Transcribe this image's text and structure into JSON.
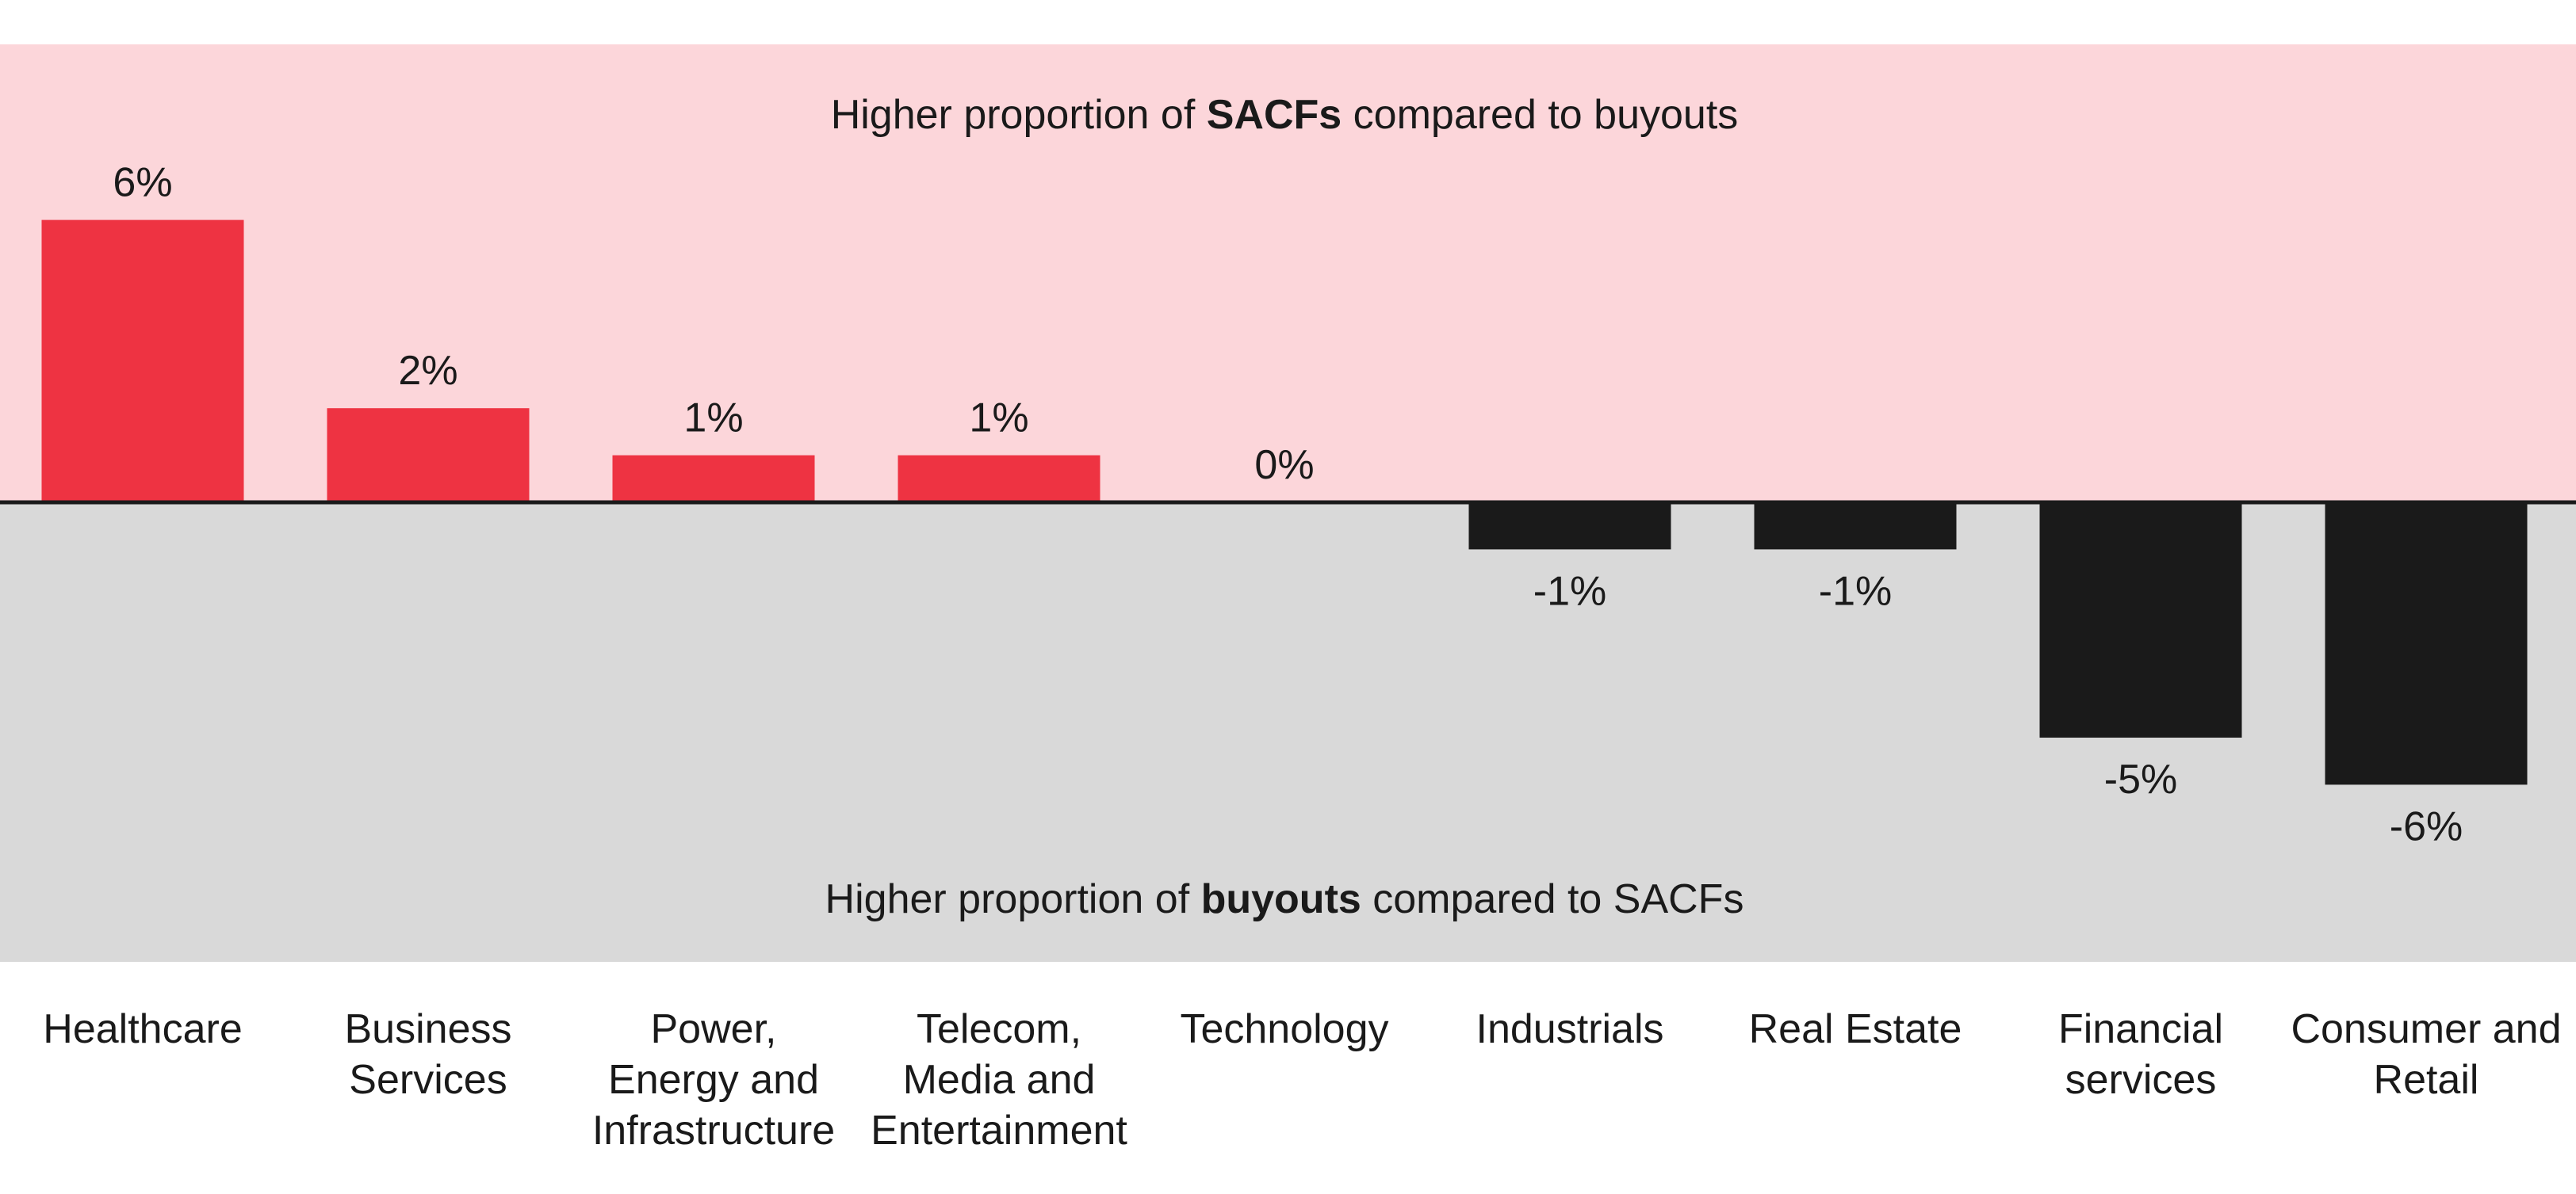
{
  "chart_data": {
    "type": "bar",
    "categories": [
      [
        "Healthcare"
      ],
      [
        "Business",
        "Services"
      ],
      [
        "Power,",
        "Energy and",
        "Infrastructure"
      ],
      [
        "Telecom,",
        "Media and",
        "Entertainment"
      ],
      [
        "Technology"
      ],
      [
        "Industrials"
      ],
      [
        "Real Estate"
      ],
      [
        "Financial",
        "services"
      ],
      [
        "Consumer and",
        "Retail"
      ]
    ],
    "values": [
      6,
      2,
      1,
      1,
      0,
      -1,
      -1,
      -5,
      -6
    ],
    "data_labels": [
      "6%",
      "2%",
      "1%",
      "1%",
      "0%",
      "-1%",
      "-1%",
      "-5%",
      "-6%"
    ],
    "unit": "%",
    "ylim": [
      -9.75,
      9.75
    ],
    "grid": false,
    "annotations": {
      "top": {
        "pre": "Higher proportion of ",
        "bold": "SACFs",
        "post": " compared to buyouts"
      },
      "bottom": {
        "pre": "Higher proportion of ",
        "bold": "buyouts",
        "post": " compared to SACFs"
      }
    },
    "colors": {
      "positive": "#EE3342",
      "negative": "#1A1A1A",
      "positive_band": "#FCD6DA",
      "negative_band": "#D9D9D9",
      "axis": "#1A1A1A"
    }
  }
}
